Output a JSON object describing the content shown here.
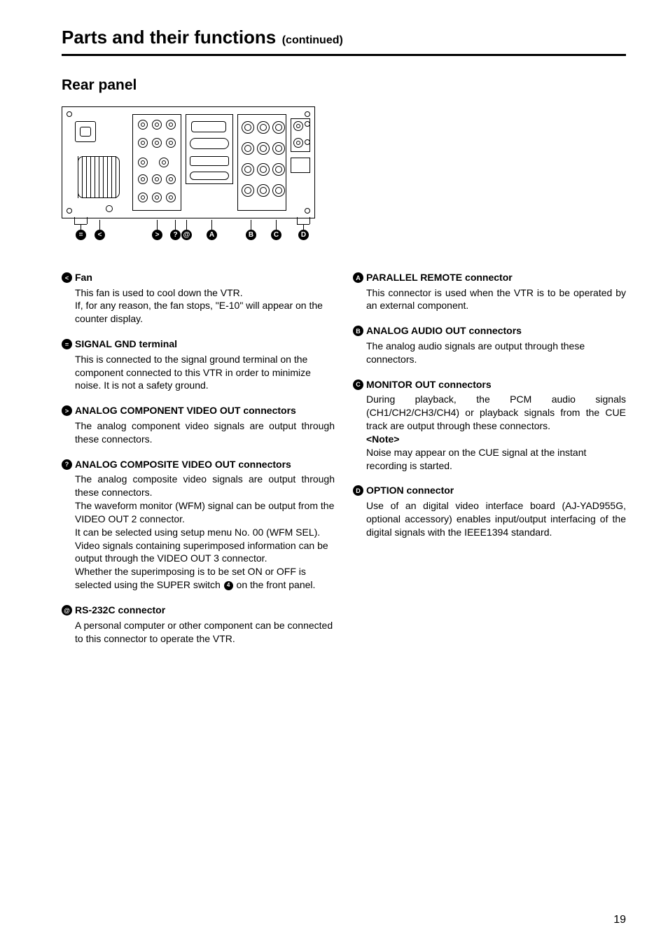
{
  "page": {
    "title_main": "Parts and their functions",
    "title_continued": "(continued)",
    "subheading": "Rear panel",
    "number": "19"
  },
  "callouts": {
    "c13": "=",
    "c12": "<",
    "c14": ">",
    "c15": "?",
    "c16": "@",
    "c17": "A",
    "c18": "B",
    "c19": "C",
    "c20": "D",
    "inline4": "4"
  },
  "left": [
    {
      "num": "<",
      "title": "Fan",
      "body": [
        "This fan is used to cool down the VTR.",
        "If, for any reason, the fan stops, \"E-10\" will appear on the counter display."
      ]
    },
    {
      "num": "=",
      "title": "SIGNAL GND terminal",
      "body": [
        "This is connected to the signal ground terminal on the component connected to this VTR in order to minimize noise. It is not a safety ground."
      ]
    },
    {
      "num": ">",
      "title": "ANALOG COMPONENT VIDEO OUT connectors",
      "body_j": [
        "The analog component video signals are output through these connectors."
      ]
    },
    {
      "num": "?",
      "title": "ANALOG COMPOSITE VIDEO OUT connectors",
      "body_mixed": [
        {
          "j": true,
          "t": "The analog composite video signals are output through these connectors."
        },
        {
          "j": false,
          "t": "The waveform monitor (WFM) signal can be output from the VIDEO OUT 2 connector."
        },
        {
          "j": false,
          "t": "It can be selected using setup menu No. 00 (WFM SEL)."
        },
        {
          "j": false,
          "t": "Video signals containing superimposed information can be output through the VIDEO OUT 3 connector."
        },
        {
          "j": false,
          "t": "Whether the superimposing is to be set ON or OFF is selected using the SUPER switch {4} on the front panel."
        }
      ]
    },
    {
      "num": "@",
      "title": "RS-232C connector",
      "body": [
        "A personal computer or other component can be connected to this connector to operate the VTR."
      ]
    }
  ],
  "right": [
    {
      "num": "A",
      "title": "PARALLEL REMOTE connector",
      "body_j": [
        "This connector is used when the VTR is to be operated by an external component."
      ]
    },
    {
      "num": "B",
      "title": "ANALOG AUDIO OUT connectors",
      "body": [
        "The analog audio signals are output through these connectors."
      ]
    },
    {
      "num": "C",
      "title": "MONITOR OUT connectors",
      "body_mixed": [
        {
          "j": true,
          "t": "During playback, the PCM audio signals (CH1/CH2/CH3/CH4) or playback signals from the CUE track are output through these connectors."
        }
      ],
      "note_label": "<Note>",
      "note_body": "Noise may appear on the CUE signal at the instant recording is started."
    },
    {
      "num": "D",
      "title": "OPTION connector",
      "body_j": [
        "Use of an digital video interface board (AJ-YAD955G, optional accessory) enables input/output interfacing of the digital signals with the IEEE1394 standard."
      ]
    }
  ]
}
